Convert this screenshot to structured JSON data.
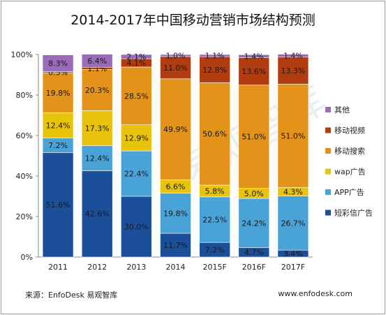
{
  "title": "2014-2017年中国移动营销市场结构预测",
  "footer": {
    "source": "来源：EnfoDesk 易观智库",
    "website": "www.enfodesk.com"
  },
  "watermark": "易观智库",
  "chart_data": {
    "type": "bar",
    "stacked": true,
    "categories": [
      "2011",
      "2012",
      "2013",
      "2014",
      "2015F",
      "2016F",
      "2017F"
    ],
    "y_ticks": [
      "0%",
      "20%",
      "40%",
      "60%",
      "80%",
      "100%"
    ],
    "ylim": [
      0,
      100
    ],
    "legend_position": "right",
    "series": [
      {
        "name": "短彩信广告",
        "color": "#1b4f9a",
        "values": [
          51.6,
          42.6,
          30.0,
          11.7,
          7.2,
          4.7,
          3.4
        ],
        "labels": [
          "51.6%",
          "42.6%",
          "30.0%",
          "11.7%",
          "7.2%",
          "4.7%",
          "3.4%"
        ]
      },
      {
        "name": "APP广告",
        "color": "#4aa3d6",
        "values": [
          7.2,
          12.4,
          22.4,
          19.8,
          22.5,
          24.2,
          26.7
        ],
        "labels": [
          "7.2%",
          "12.4%",
          "22.4%",
          "19.8%",
          "22.5%",
          "24.2%",
          "26.7%"
        ]
      },
      {
        "name": "wap广告",
        "color": "#e8c30c",
        "values": [
          12.4,
          17.3,
          12.9,
          6.6,
          5.8,
          5.0,
          4.3
        ],
        "labels": [
          "12.4%",
          "17.3%",
          "12.9%",
          "6.6%",
          "5.8%",
          "5.0%",
          "4.3%"
        ]
      },
      {
        "name": "移动搜索",
        "color": "#e3921a",
        "values": [
          19.8,
          20.3,
          28.5,
          49.9,
          50.6,
          51.0,
          51.0
        ],
        "labels": [
          "19.8%",
          "20.3%",
          "28.5%",
          "49.9%",
          "50.6%",
          "51.0%",
          "51.0%"
        ]
      },
      {
        "name": "移动视频",
        "color": "#b03c0f",
        "values": [
          0.5,
          1.1,
          4.1,
          11.0,
          12.8,
          13.6,
          13.3
        ],
        "labels": [
          "0.5%",
          "1.1%",
          "4.1%",
          "11.0%",
          "12.8%",
          "13.6%",
          "13.3%"
        ]
      },
      {
        "name": "其他",
        "color": "#9a6bb8",
        "values": [
          8.3,
          6.4,
          2.1,
          1.0,
          1.1,
          1.4,
          1.4
        ],
        "labels": [
          "8.3%",
          "6.4%",
          "2.1%",
          "1.0%",
          "1.1%",
          "1.4%",
          "1.4%"
        ]
      }
    ]
  }
}
